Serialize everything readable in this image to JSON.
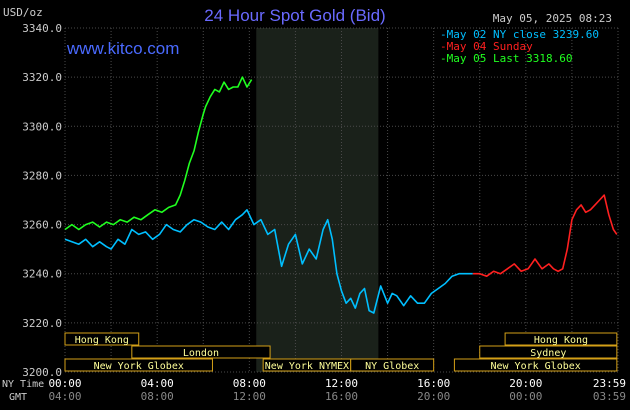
{
  "header": {
    "unit": "USD/oz",
    "title": "24 Hour Spot Gold (Bid)",
    "timestamp": "May 05, 2025 08:23",
    "watermark": "www.kitco.com"
  },
  "legend": [
    {
      "label": "May 02 NY close 3239.60",
      "color": "#00bfff"
    },
    {
      "label": "May 04 Sunday",
      "color": "#ff2020"
    },
    {
      "label": "May 05 Last 3318.60",
      "color": "#20ff20"
    }
  ],
  "sessions": [
    {
      "label": "Hong Kong",
      "start": 0.0,
      "end": 3.2
    },
    {
      "label": "London",
      "start": 2.9,
      "end": 8.9
    },
    {
      "label": "New York Globex",
      "start": -0.5,
      "end": 6.4
    },
    {
      "label": "New York NYMEX",
      "start": 8.6,
      "end": 12.4
    },
    {
      "label": "NY Globex",
      "start": 12.4,
      "end": 16.0
    },
    {
      "label": "Hong Kong",
      "start": 19.1,
      "end": 23.95
    },
    {
      "label": "Sydney",
      "start": 18.0,
      "end": 23.95
    },
    {
      "label": "New York Globex",
      "start": 16.9,
      "end": 23.95
    }
  ],
  "bottom_labels": {
    "ny_time": "NY Time",
    "gmt": "GMT",
    "ny_ticks": [
      "00:00",
      "04:00",
      "08:00",
      "12:00",
      "16:00",
      "20:00",
      "23:59"
    ],
    "gmt_ticks": [
      "04:00",
      "08:00",
      "12:00",
      "16:00",
      "20:00",
      "00:00",
      "03:59"
    ]
  },
  "chart_data": {
    "type": "line",
    "title": "24 Hour Spot Gold (Bid)",
    "ylabel": "USD/oz",
    "xlabel": "NY Time",
    "ylim": [
      3200,
      3340
    ],
    "xlim": [
      0,
      24
    ],
    "y_ticks": [
      "3200.0",
      "3220.0",
      "3240.0",
      "3260.0",
      "3280.0",
      "3300.0",
      "3320.0",
      "3340.0"
    ],
    "x_tick_values": [
      0,
      4,
      8,
      12,
      16,
      20,
      23.983
    ],
    "grid": true,
    "shaded_region": [
      8.3,
      13.6
    ],
    "legend_position": "top-right",
    "series": [
      {
        "name": "May 02 NY close 3239.60",
        "color": "#00bfff",
        "x": [
          0,
          0.3,
          0.6,
          0.9,
          1.2,
          1.5,
          1.8,
          2.0,
          2.3,
          2.6,
          2.9,
          3.2,
          3.5,
          3.8,
          4.1,
          4.4,
          4.7,
          5.0,
          5.3,
          5.6,
          5.9,
          6.2,
          6.5,
          6.8,
          7.1,
          7.4,
          7.7,
          7.9,
          8.2,
          8.5,
          8.8,
          9.1,
          9.4,
          9.7,
          10.0,
          10.3,
          10.6,
          10.9,
          11.2,
          11.4,
          11.6,
          11.8,
          12.0,
          12.2,
          12.4,
          12.6,
          12.8,
          13.0,
          13.2,
          13.4,
          13.7,
          14.0,
          14.2,
          14.4,
          14.7,
          15.0,
          15.3,
          15.6,
          15.9,
          16.2,
          16.5,
          16.8,
          17.1,
          17.4,
          17.7
        ],
        "values": [
          3254,
          3253,
          3252,
          3254,
          3251,
          3253,
          3251,
          3250,
          3254,
          3252,
          3258,
          3256,
          3257,
          3254,
          3256,
          3260,
          3258,
          3257,
          3260,
          3262,
          3261,
          3259,
          3258,
          3261,
          3258,
          3262,
          3264,
          3266,
          3260,
          3262,
          3256,
          3258,
          3243,
          3252,
          3256,
          3244,
          3250,
          3246,
          3258,
          3262,
          3254,
          3240,
          3233,
          3228,
          3230,
          3226,
          3232,
          3234,
          3225,
          3224,
          3235,
          3228,
          3232,
          3231,
          3227,
          3231,
          3228,
          3228,
          3232,
          3234,
          3236,
          3239,
          3240,
          3240,
          3240
        ]
      },
      {
        "name": "May 04 Sunday",
        "color": "#ff2020",
        "x": [
          17.7,
          18.0,
          18.3,
          18.6,
          18.9,
          19.2,
          19.5,
          19.8,
          20.1,
          20.4,
          20.7,
          21.0,
          21.2,
          21.4,
          21.6,
          21.8,
          22.0,
          22.2,
          22.4,
          22.6,
          22.8,
          23.0,
          23.2,
          23.4,
          23.6,
          23.8,
          23.95
        ],
        "values": [
          3240,
          3240,
          3239,
          3241,
          3240,
          3242,
          3244,
          3241,
          3242,
          3246,
          3242,
          3244,
          3242,
          3241,
          3242,
          3250,
          3262,
          3266,
          3268,
          3265,
          3266,
          3268,
          3270,
          3272,
          3264,
          3258,
          3256
        ]
      },
      {
        "name": "May 05 Last 3318.60",
        "color": "#20ff20",
        "x": [
          0,
          0.3,
          0.6,
          0.9,
          1.2,
          1.5,
          1.8,
          2.1,
          2.4,
          2.7,
          3.0,
          3.3,
          3.6,
          3.9,
          4.2,
          4.5,
          4.8,
          5.0,
          5.2,
          5.4,
          5.6,
          5.8,
          6.0,
          6.1,
          6.3,
          6.5,
          6.7,
          6.9,
          7.1,
          7.3,
          7.5,
          7.7,
          7.9,
          8.1
        ],
        "values": [
          3258,
          3260,
          3258,
          3260,
          3261,
          3259,
          3261,
          3260,
          3262,
          3261,
          3263,
          3262,
          3264,
          3266,
          3265,
          3267,
          3268,
          3272,
          3278,
          3285,
          3290,
          3298,
          3305,
          3308,
          3312,
          3315,
          3314,
          3318,
          3315,
          3316,
          3316,
          3320,
          3316,
          3319
        ]
      }
    ]
  }
}
